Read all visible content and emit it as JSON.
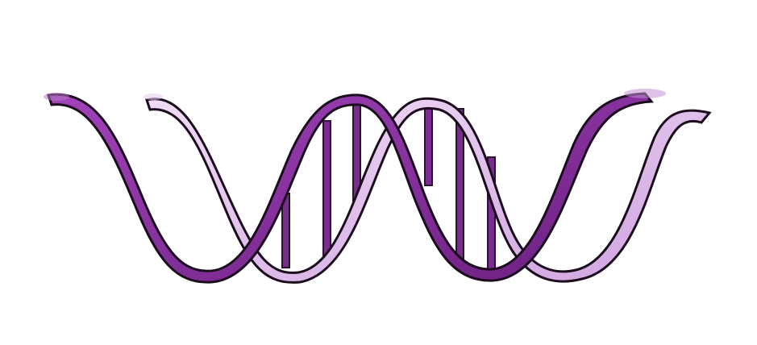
{
  "illustration": {
    "subject_icon": "dna-double-helix-icon",
    "colors": {
      "background": "#ffffff",
      "strand_dark": "#8a2ea0",
      "strand_dark_shade": "#5e1a70",
      "strand_light": "#e3c1ef",
      "strand_light_shade": "#c99ad9",
      "rung": "#7b2d8f",
      "outline": "#1b0d1e"
    }
  }
}
